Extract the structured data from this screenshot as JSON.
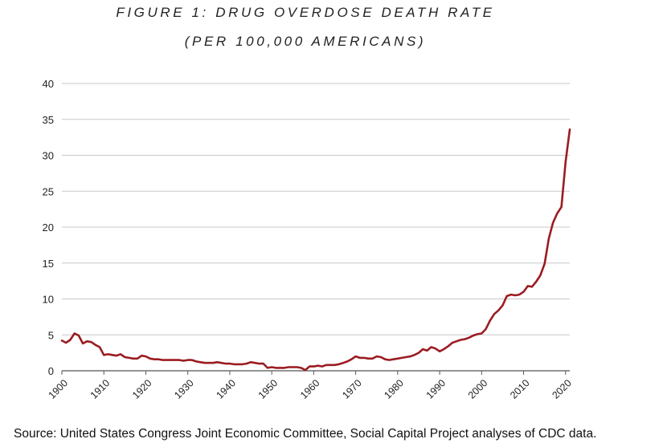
{
  "title": "FIGURE 1: DRUG OVERDOSE DEATH RATE",
  "subtitle": "(PER 100,000 AMERICANS)",
  "source": "Source: United States Congress Joint Economic Committee, Social Capital Project analyses of CDC data.",
  "colors": {
    "line": "#9b1c22",
    "grid": "#c8c8c8",
    "axis": "#555555"
  },
  "chart_data": {
    "type": "line",
    "title": "FIGURE 1: DRUG OVERDOSE DEATH RATE",
    "subtitle": "(PER 100,000 AMERICANS)",
    "xlabel": "",
    "ylabel": "",
    "xlim": [
      1900,
      2021
    ],
    "ylim": [
      0,
      40
    ],
    "x_ticks": [
      "1900",
      "1910",
      "1920",
      "1930",
      "1940",
      "1950",
      "1960",
      "1970",
      "1980",
      "1990",
      "2000",
      "2010",
      "2020"
    ],
    "y_ticks": [
      "0",
      "5",
      "10",
      "15",
      "20",
      "25",
      "30",
      "35",
      "40"
    ],
    "grid": true,
    "legend": "none",
    "series": [
      {
        "x": [
          1900,
          1901,
          1902,
          1903,
          1904,
          1905,
          1906,
          1907,
          1908,
          1909,
          1910,
          1911,
          1912,
          1913,
          1914,
          1915,
          1916,
          1917,
          1918,
          1919,
          1920,
          1921,
          1922,
          1923,
          1924,
          1925,
          1926,
          1927,
          1928,
          1929,
          1930,
          1931,
          1932,
          1933,
          1934,
          1935,
          1936,
          1937,
          1938,
          1939,
          1940,
          1941,
          1942,
          1943,
          1944,
          1945,
          1946,
          1947,
          1948,
          1949,
          1950,
          1951,
          1952,
          1953,
          1954,
          1955,
          1956,
          1957,
          1958,
          1959,
          1960,
          1961,
          1962,
          1963,
          1964,
          1965,
          1966,
          1967,
          1968,
          1969,
          1970,
          1971,
          1972,
          1973,
          1974,
          1975,
          1976,
          1977,
          1978,
          1979,
          1980,
          1981,
          1982,
          1983,
          1984,
          1985,
          1986,
          1987,
          1988,
          1989,
          1990,
          1991,
          1992,
          1993,
          1994,
          1995,
          1996,
          1997,
          1998,
          1999,
          2000,
          2001,
          2002,
          2003,
          2004,
          2005,
          2006,
          2007,
          2008,
          2009,
          2010,
          2011,
          2012,
          2013,
          2014,
          2015,
          2016,
          2017,
          2018,
          2019,
          2020,
          2021
        ],
        "values": [
          4.2,
          3.9,
          4.3,
          5.2,
          4.9,
          3.8,
          4.1,
          4.0,
          3.6,
          3.3,
          2.2,
          2.3,
          2.2,
          2.1,
          2.3,
          1.9,
          1.8,
          1.7,
          1.7,
          2.1,
          2.0,
          1.7,
          1.6,
          1.6,
          1.5,
          1.5,
          1.5,
          1.5,
          1.5,
          1.4,
          1.5,
          1.5,
          1.3,
          1.2,
          1.1,
          1.1,
          1.1,
          1.2,
          1.1,
          1.0,
          1.0,
          0.9,
          0.9,
          0.9,
          1.0,
          1.2,
          1.1,
          1.0,
          1.0,
          0.4,
          0.5,
          0.4,
          0.4,
          0.4,
          0.5,
          0.5,
          0.5,
          0.4,
          0.1,
          0.6,
          0.6,
          0.7,
          0.6,
          0.8,
          0.8,
          0.8,
          0.9,
          1.1,
          1.3,
          1.6,
          2.0,
          1.8,
          1.8,
          1.7,
          1.7,
          2.0,
          1.9,
          1.6,
          1.5,
          1.6,
          1.7,
          1.8,
          1.9,
          2.0,
          2.2,
          2.5,
          3.0,
          2.8,
          3.3,
          3.1,
          2.7,
          3.0,
          3.4,
          3.9,
          4.1,
          4.3,
          4.4,
          4.6,
          4.9,
          5.1,
          5.2,
          5.8,
          7.0,
          7.9,
          8.4,
          9.1,
          10.4,
          10.6,
          10.5,
          10.6,
          11.0,
          11.8,
          11.7,
          12.4,
          13.3,
          14.9,
          18.4,
          20.6,
          21.9,
          22.8,
          29.1,
          33.6
        ]
      }
    ]
  }
}
